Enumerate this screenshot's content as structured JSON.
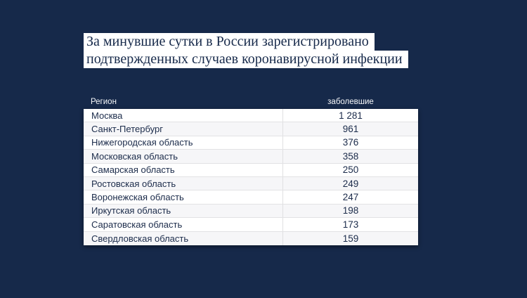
{
  "colors": {
    "background": "#16294a",
    "strip_background": "#ffffff",
    "title_text": "#16294a",
    "header_text": "#f5f6f8",
    "row_text": "#1b2b4a",
    "row_alt_background": "#f6f6f8",
    "divider": "#e0e0e2"
  },
  "title": {
    "line1": "За минувшие сутки в России зарегистрировано",
    "line2": "подтвержденных случаев коронавирусной инфекции"
  },
  "table": {
    "headers": {
      "region": "Регион",
      "cases": "заболевшие"
    },
    "rows": [
      {
        "region": "Москва",
        "cases": "1 281"
      },
      {
        "region": "Санкт-Петербург",
        "cases": "961"
      },
      {
        "region": "Нижегородская область",
        "cases": "376"
      },
      {
        "region": "Московская область",
        "cases": "358"
      },
      {
        "region": "Самарская область",
        "cases": "250"
      },
      {
        "region": "Ростовская область",
        "cases": "249"
      },
      {
        "region": "Воронежская область",
        "cases": "247"
      },
      {
        "region": "Иркутская область",
        "cases": "198"
      },
      {
        "region": "Саратовская область",
        "cases": "173"
      },
      {
        "region": "Свердловская область",
        "cases": "159"
      }
    ]
  },
  "chart_data": {
    "type": "table",
    "title": "За минувшие сутки в России зарегистрировано подтвержденных случаев коронавирусной инфекции",
    "columns": [
      "Регион",
      "заболевшие"
    ],
    "categories": [
      "Москва",
      "Санкт-Петербург",
      "Нижегородская область",
      "Московская область",
      "Самарская область",
      "Ростовская область",
      "Воронежская область",
      "Иркутская область",
      "Саратовская область",
      "Свердловская область"
    ],
    "values": [
      1281,
      961,
      376,
      358,
      250,
      249,
      247,
      198,
      173,
      159
    ],
    "legend_position": "none",
    "grid": false
  }
}
